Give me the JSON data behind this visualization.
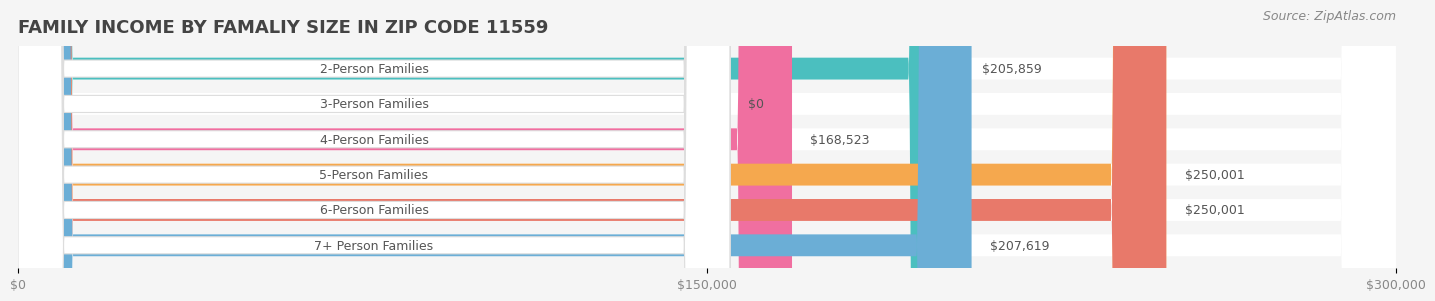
{
  "title": "FAMILY INCOME BY FAMALIY SIZE IN ZIP CODE 11559",
  "source": "Source: ZipAtlas.com",
  "categories": [
    "2-Person Families",
    "3-Person Families",
    "4-Person Families",
    "5-Person Families",
    "6-Person Families",
    "7+ Person Families"
  ],
  "values": [
    205859,
    0,
    168523,
    250001,
    250001,
    207619
  ],
  "bar_colors": [
    "#4BBFBF",
    "#A89CC8",
    "#F06FA0",
    "#F5A84E",
    "#E8796A",
    "#6BAED6"
  ],
  "value_labels": [
    "$205,859",
    "$0",
    "$168,523",
    "$250,001",
    "$250,001",
    "$207,619"
  ],
  "xlim": [
    0,
    300000
  ],
  "xticks": [
    0,
    150000,
    300000
  ],
  "xtick_labels": [
    "$0",
    "$150,000",
    "$300,000"
  ],
  "background_color": "#f5f5f5",
  "bar_bg_color": "#e8e8e8",
  "title_fontsize": 13,
  "label_fontsize": 9,
  "value_fontsize": 9,
  "source_fontsize": 9
}
